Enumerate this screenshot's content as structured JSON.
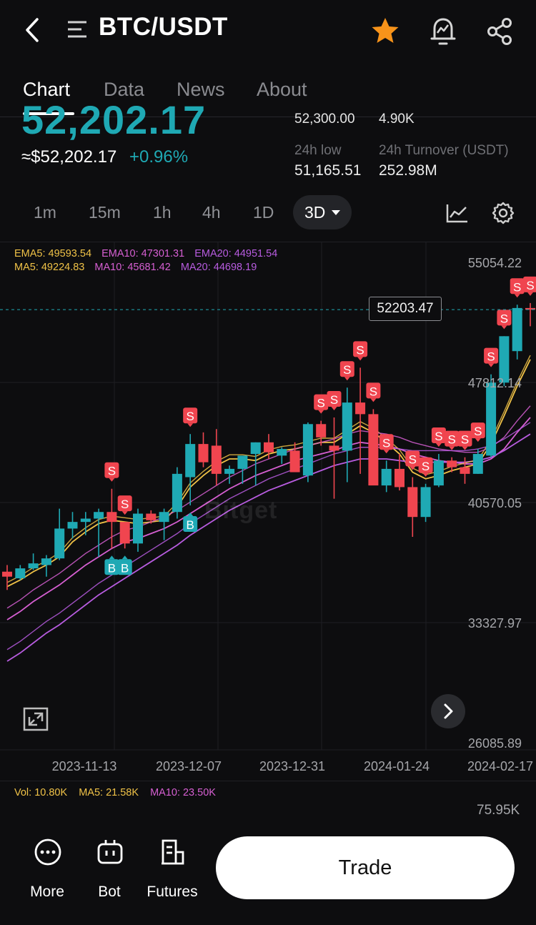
{
  "header": {
    "title": "BTC/USDT",
    "icons": [
      "back-icon",
      "menu-icon",
      "star-icon",
      "alert-icon",
      "share-icon"
    ],
    "star_color": "#f7931a"
  },
  "tabs": [
    {
      "label": "Chart",
      "active": true
    },
    {
      "label": "Data",
      "active": false
    },
    {
      "label": "News",
      "active": false
    },
    {
      "label": "About",
      "active": false
    }
  ],
  "ticker": {
    "last_price": "52,202.17",
    "fiat_price": "≈$52,202.17",
    "change": "+0.96%",
    "high_value": "52,300.00",
    "volume_value": "4.90K",
    "low_label": "24h low",
    "low_value": "51,165.51",
    "turnover_label": "24h Turnover (USDT)",
    "turnover_value": "252.98M"
  },
  "intervals": {
    "items": [
      "1m",
      "15m",
      "1h",
      "4h",
      "1D"
    ],
    "selected": "3D"
  },
  "indicators": {
    "ema5": "EMA5: 49593.54",
    "ema10": "EMA10: 47301.31",
    "ema20": "EMA20: 44951.54",
    "ma5": "MA5: 49224.83",
    "ma10": "MA10: 45681.42",
    "ma20": "MA20: 44698.19"
  },
  "colors": {
    "up": "#1fa9b4",
    "down": "#f0454f",
    "ma5": "#f0c247",
    "ma10": "#d65fd2",
    "ma20": "#b85ce0",
    "ema5": "#f0c247",
    "ema10": "#d65fd2",
    "ema20": "#b85ce0"
  },
  "current_price_label": "52203.47",
  "watermark": "Bitget",
  "volume": {
    "vol": "Vol: 10.80K",
    "ma5": "MA5: 21.58K",
    "ma10": "MA10: 23.50K",
    "axis_max": "75.95K"
  },
  "bottom_nav": {
    "more": "More",
    "bot": "Bot",
    "futures": "Futures",
    "trade": "Trade"
  },
  "chart_data": {
    "type": "candlestick",
    "y_ticks": [
      "55054.22",
      "47812.14",
      "40570.05",
      "33327.97",
      "26085.89"
    ],
    "ylim": [
      26085.89,
      55054.22
    ],
    "x_ticks": [
      "2023-11-13",
      "2023-12-07",
      "2023-12-31",
      "2024-01-24",
      "2024-02-17"
    ],
    "current_price": 52203.47,
    "candles": [
      {
        "o": 36400,
        "h": 36800,
        "l": 35300,
        "c": 36100
      },
      {
        "o": 36000,
        "h": 36800,
        "l": 35900,
        "c": 36600
      },
      {
        "o": 36600,
        "h": 37500,
        "l": 36500,
        "c": 36900
      },
      {
        "o": 36800,
        "h": 37400,
        "l": 36100,
        "c": 37200
      },
      {
        "o": 37200,
        "h": 40200,
        "l": 37100,
        "c": 39000
      },
      {
        "o": 39000,
        "h": 40000,
        "l": 38400,
        "c": 39400
      },
      {
        "o": 39400,
        "h": 40000,
        "l": 38600,
        "c": 39600
      },
      {
        "o": 39600,
        "h": 40200,
        "l": 37300,
        "c": 40000
      },
      {
        "o": 40000,
        "h": 41400,
        "l": 37800,
        "c": 39400
      },
      {
        "o": 39400,
        "h": 39400,
        "l": 37800,
        "c": 38100
      },
      {
        "o": 38100,
        "h": 40200,
        "l": 37600,
        "c": 39900
      },
      {
        "o": 39900,
        "h": 40100,
        "l": 39300,
        "c": 39500
      },
      {
        "o": 39400,
        "h": 40200,
        "l": 38300,
        "c": 40000
      },
      {
        "o": 40000,
        "h": 42700,
        "l": 39600,
        "c": 42300
      },
      {
        "o": 42100,
        "h": 44700,
        "l": 40400,
        "c": 44100
      },
      {
        "o": 44100,
        "h": 44800,
        "l": 42700,
        "c": 43000
      },
      {
        "o": 44000,
        "h": 45000,
        "l": 41600,
        "c": 42300
      },
      {
        "o": 42300,
        "h": 42800,
        "l": 41700,
        "c": 42600
      },
      {
        "o": 42600,
        "h": 43200,
        "l": 41700,
        "c": 43400
      },
      {
        "o": 43500,
        "h": 44200,
        "l": 41600,
        "c": 44200
      },
      {
        "o": 44200,
        "h": 44700,
        "l": 43200,
        "c": 43600
      },
      {
        "o": 43400,
        "h": 43900,
        "l": 42900,
        "c": 43800
      },
      {
        "o": 43700,
        "h": 44200,
        "l": 42600,
        "c": 42400
      },
      {
        "o": 42200,
        "h": 45400,
        "l": 41800,
        "c": 45300
      },
      {
        "o": 45300,
        "h": 45500,
        "l": 44000,
        "c": 44500
      },
      {
        "o": 44000,
        "h": 45700,
        "l": 40800,
        "c": 43700
      },
      {
        "o": 43700,
        "h": 47500,
        "l": 41800,
        "c": 46600
      },
      {
        "o": 46600,
        "h": 48700,
        "l": 42300,
        "c": 45900
      },
      {
        "o": 45900,
        "h": 46200,
        "l": 41800,
        "c": 41600
      },
      {
        "o": 41600,
        "h": 43100,
        "l": 41200,
        "c": 42600
      },
      {
        "o": 42600,
        "h": 43500,
        "l": 41300,
        "c": 41500
      },
      {
        "o": 41500,
        "h": 42100,
        "l": 38500,
        "c": 39700
      },
      {
        "o": 39700,
        "h": 41700,
        "l": 39400,
        "c": 41500
      },
      {
        "o": 41600,
        "h": 43500,
        "l": 41500,
        "c": 43100
      },
      {
        "o": 43100,
        "h": 43300,
        "l": 42400,
        "c": 42700
      },
      {
        "o": 42700,
        "h": 43300,
        "l": 41700,
        "c": 42300
      },
      {
        "o": 42300,
        "h": 43800,
        "l": 42300,
        "c": 43500
      },
      {
        "o": 43400,
        "h": 48300,
        "l": 43300,
        "c": 47800
      },
      {
        "o": 47800,
        "h": 50600,
        "l": 47600,
        "c": 50600
      },
      {
        "o": 49700,
        "h": 52500,
        "l": 49200,
        "c": 52300
      },
      {
        "o": 52300,
        "h": 52600,
        "l": 51200,
        "c": 52200
      }
    ],
    "markers": [
      {
        "i": 8,
        "type": "S",
        "level": 1
      },
      {
        "i": 9,
        "type": "S",
        "level": 1
      },
      {
        "i": 8,
        "type": "B",
        "level": -1
      },
      {
        "i": 9,
        "type": "B",
        "level": -1
      },
      {
        "i": 14,
        "type": "S",
        "level": 1
      },
      {
        "i": 14,
        "type": "B",
        "level": -1
      },
      {
        "i": 24,
        "type": "S",
        "level": 1
      },
      {
        "i": 25,
        "type": "S",
        "level": 1
      },
      {
        "i": 26,
        "type": "S",
        "level": 1
      },
      {
        "i": 27,
        "type": "S",
        "level": 1
      },
      {
        "i": 28,
        "type": "S",
        "level": 1
      },
      {
        "i": 29,
        "type": "S",
        "level": 1
      },
      {
        "i": 31,
        "type": "S",
        "level": 1
      },
      {
        "i": 32,
        "type": "S",
        "level": 1
      },
      {
        "i": 33,
        "type": "S",
        "level": 1
      },
      {
        "i": 34,
        "type": "S",
        "level": 1
      },
      {
        "i": 35,
        "type": "S",
        "level": 1
      },
      {
        "i": 36,
        "type": "S",
        "level": 1
      },
      {
        "i": 37,
        "type": "S",
        "level": 1
      },
      {
        "i": 38,
        "type": "S",
        "level": 1
      },
      {
        "i": 39,
        "type": "S",
        "level": 1
      },
      {
        "i": 40,
        "type": "S",
        "level": 1
      }
    ],
    "ma_lines": [
      {
        "name": "MA5",
        "values": [
          35500,
          35900,
          36400,
          36800,
          37300,
          38200,
          38800,
          39300,
          39500,
          39400,
          39300,
          39400,
          39500,
          40300,
          41500,
          42200,
          42800,
          43200,
          43200,
          43100,
          43500,
          43700,
          43800,
          44000,
          44200,
          44200,
          44700,
          45200,
          44800,
          44200,
          43500,
          42400,
          42000,
          42200,
          42500,
          42700,
          42900,
          44100,
          45800,
          47600,
          49200
        ]
      },
      {
        "name": "MA10",
        "values": [
          33500,
          34000,
          34600,
          35100,
          35600,
          36200,
          36800,
          37300,
          37800,
          38200,
          38400,
          38700,
          39000,
          39400,
          39900,
          40400,
          40900,
          41400,
          41800,
          42200,
          42500,
          42800,
          43100,
          43300,
          43500,
          43700,
          44000,
          44200,
          44100,
          44000,
          43800,
          43500,
          43300,
          43100,
          43000,
          42900,
          42900,
          43200,
          43800,
          44800,
          45700
        ]
      },
      {
        "name": "MA20",
        "values": [
          31000,
          31500,
          32100,
          32700,
          33200,
          33800,
          34400,
          35000,
          35500,
          36000,
          36500,
          37000,
          37500,
          38000,
          38600,
          39100,
          39600,
          40100,
          40500,
          40900,
          41300,
          41600,
          41900,
          42200,
          42500,
          42800,
          43000,
          43200,
          43200,
          43200,
          43100,
          43000,
          43000,
          43000,
          43000,
          43000,
          43100,
          43300,
          43700,
          44200,
          44700
        ]
      }
    ]
  }
}
